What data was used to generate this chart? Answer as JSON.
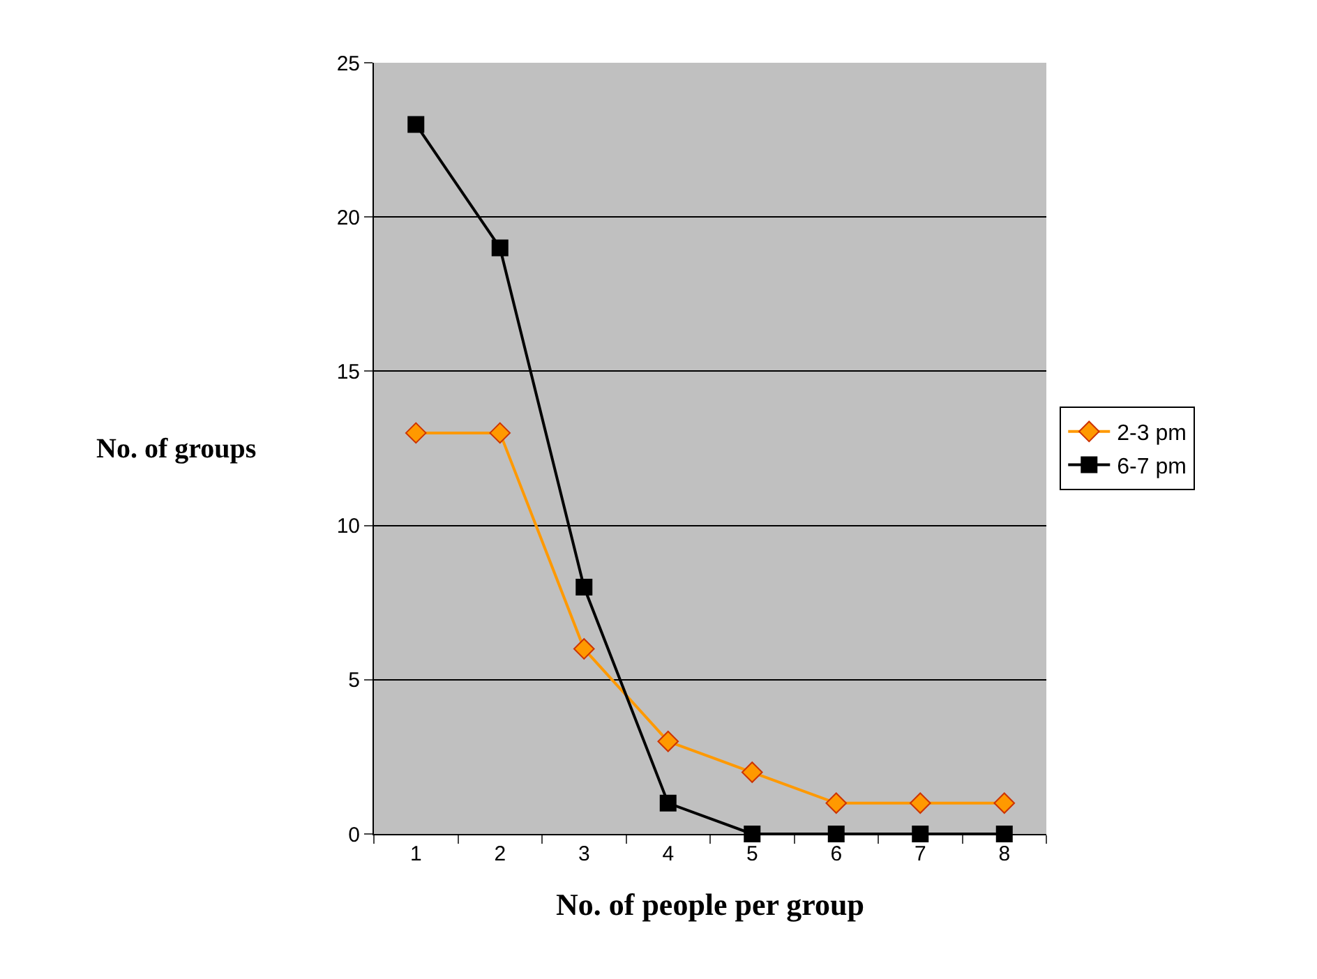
{
  "chart_data": {
    "type": "line",
    "xlabel": "No. of people per group",
    "ylabel": "No. of groups",
    "categories": [
      "1",
      "2",
      "3",
      "4",
      "5",
      "6",
      "7",
      "8"
    ],
    "series": [
      {
        "name": "2-3 pm",
        "color": "#ff9900",
        "marker": "diamond",
        "values": [
          13,
          13,
          6,
          3,
          2,
          1,
          1,
          1
        ]
      },
      {
        "name": "6-7 pm",
        "color": "#000000",
        "marker": "square",
        "values": [
          23,
          19,
          8,
          1,
          0,
          0,
          0,
          0
        ]
      }
    ],
    "ylim": [
      0,
      25
    ],
    "yticks": [
      0,
      5,
      10,
      15,
      20,
      25
    ],
    "grid": "y",
    "legend": "right",
    "line_style": "solid"
  }
}
